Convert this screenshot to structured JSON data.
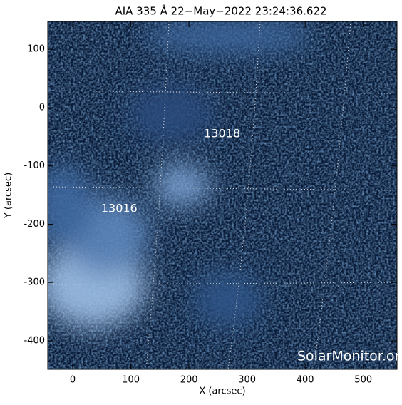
{
  "chart_data": {
    "type": "image",
    "title": "AIA 335 Å 22−May−2022 23:24:36.622",
    "x_label": "X (arcsec)",
    "y_label": "Y (arcsec)",
    "xlim": [
      -43,
      558
    ],
    "ylim": [
      -449,
      148
    ],
    "xticks": [
      0,
      100,
      200,
      300,
      400,
      500
    ],
    "yticks": [
      100,
      0,
      -100,
      -200,
      -300,
      -400
    ],
    "annotations": [
      {
        "text": "13018",
        "x": 257,
        "y": -45
      },
      {
        "text": "13016",
        "x": 80,
        "y": -174
      }
    ],
    "watermark": "SolarMonitor.org"
  }
}
